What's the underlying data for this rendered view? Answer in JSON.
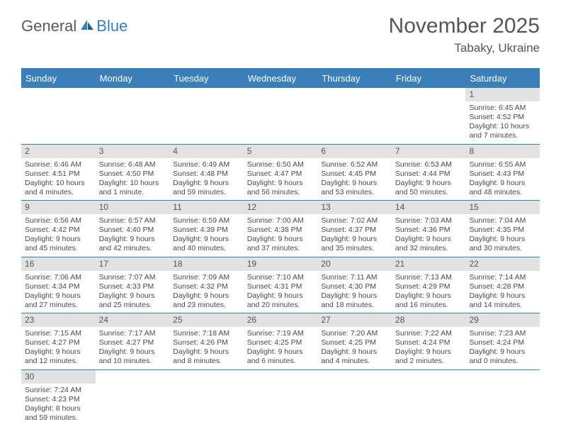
{
  "logo": {
    "text_general": "General",
    "text_blue": "Blue"
  },
  "title": "November 2025",
  "location": "Tabaky, Ukraine",
  "colors": {
    "header_blue": "#3b7fb8",
    "daynum_bg": "#e2e2e2",
    "text": "#4a4a4a",
    "title_text": "#555555"
  },
  "day_headers": [
    "Sunday",
    "Monday",
    "Tuesday",
    "Wednesday",
    "Thursday",
    "Friday",
    "Saturday"
  ],
  "weeks": [
    [
      {
        "day": "",
        "sunrise": "",
        "sunset": "",
        "daylight1": "",
        "daylight2": ""
      },
      {
        "day": "",
        "sunrise": "",
        "sunset": "",
        "daylight1": "",
        "daylight2": ""
      },
      {
        "day": "",
        "sunrise": "",
        "sunset": "",
        "daylight1": "",
        "daylight2": ""
      },
      {
        "day": "",
        "sunrise": "",
        "sunset": "",
        "daylight1": "",
        "daylight2": ""
      },
      {
        "day": "",
        "sunrise": "",
        "sunset": "",
        "daylight1": "",
        "daylight2": ""
      },
      {
        "day": "",
        "sunrise": "",
        "sunset": "",
        "daylight1": "",
        "daylight2": ""
      },
      {
        "day": "1",
        "sunrise": "Sunrise: 6:45 AM",
        "sunset": "Sunset: 4:52 PM",
        "daylight1": "Daylight: 10 hours",
        "daylight2": "and 7 minutes."
      }
    ],
    [
      {
        "day": "2",
        "sunrise": "Sunrise: 6:46 AM",
        "sunset": "Sunset: 4:51 PM",
        "daylight1": "Daylight: 10 hours",
        "daylight2": "and 4 minutes."
      },
      {
        "day": "3",
        "sunrise": "Sunrise: 6:48 AM",
        "sunset": "Sunset: 4:50 PM",
        "daylight1": "Daylight: 10 hours",
        "daylight2": "and 1 minute."
      },
      {
        "day": "4",
        "sunrise": "Sunrise: 6:49 AM",
        "sunset": "Sunset: 4:48 PM",
        "daylight1": "Daylight: 9 hours",
        "daylight2": "and 59 minutes."
      },
      {
        "day": "5",
        "sunrise": "Sunrise: 6:50 AM",
        "sunset": "Sunset: 4:47 PM",
        "daylight1": "Daylight: 9 hours",
        "daylight2": "and 56 minutes."
      },
      {
        "day": "6",
        "sunrise": "Sunrise: 6:52 AM",
        "sunset": "Sunset: 4:45 PM",
        "daylight1": "Daylight: 9 hours",
        "daylight2": "and 53 minutes."
      },
      {
        "day": "7",
        "sunrise": "Sunrise: 6:53 AM",
        "sunset": "Sunset: 4:44 PM",
        "daylight1": "Daylight: 9 hours",
        "daylight2": "and 50 minutes."
      },
      {
        "day": "8",
        "sunrise": "Sunrise: 6:55 AM",
        "sunset": "Sunset: 4:43 PM",
        "daylight1": "Daylight: 9 hours",
        "daylight2": "and 48 minutes."
      }
    ],
    [
      {
        "day": "9",
        "sunrise": "Sunrise: 6:56 AM",
        "sunset": "Sunset: 4:42 PM",
        "daylight1": "Daylight: 9 hours",
        "daylight2": "and 45 minutes."
      },
      {
        "day": "10",
        "sunrise": "Sunrise: 6:57 AM",
        "sunset": "Sunset: 4:40 PM",
        "daylight1": "Daylight: 9 hours",
        "daylight2": "and 42 minutes."
      },
      {
        "day": "11",
        "sunrise": "Sunrise: 6:59 AM",
        "sunset": "Sunset: 4:39 PM",
        "daylight1": "Daylight: 9 hours",
        "daylight2": "and 40 minutes."
      },
      {
        "day": "12",
        "sunrise": "Sunrise: 7:00 AM",
        "sunset": "Sunset: 4:38 PM",
        "daylight1": "Daylight: 9 hours",
        "daylight2": "and 37 minutes."
      },
      {
        "day": "13",
        "sunrise": "Sunrise: 7:02 AM",
        "sunset": "Sunset: 4:37 PM",
        "daylight1": "Daylight: 9 hours",
        "daylight2": "and 35 minutes."
      },
      {
        "day": "14",
        "sunrise": "Sunrise: 7:03 AM",
        "sunset": "Sunset: 4:36 PM",
        "daylight1": "Daylight: 9 hours",
        "daylight2": "and 32 minutes."
      },
      {
        "day": "15",
        "sunrise": "Sunrise: 7:04 AM",
        "sunset": "Sunset: 4:35 PM",
        "daylight1": "Daylight: 9 hours",
        "daylight2": "and 30 minutes."
      }
    ],
    [
      {
        "day": "16",
        "sunrise": "Sunrise: 7:06 AM",
        "sunset": "Sunset: 4:34 PM",
        "daylight1": "Daylight: 9 hours",
        "daylight2": "and 27 minutes."
      },
      {
        "day": "17",
        "sunrise": "Sunrise: 7:07 AM",
        "sunset": "Sunset: 4:33 PM",
        "daylight1": "Daylight: 9 hours",
        "daylight2": "and 25 minutes."
      },
      {
        "day": "18",
        "sunrise": "Sunrise: 7:09 AM",
        "sunset": "Sunset: 4:32 PM",
        "daylight1": "Daylight: 9 hours",
        "daylight2": "and 23 minutes."
      },
      {
        "day": "19",
        "sunrise": "Sunrise: 7:10 AM",
        "sunset": "Sunset: 4:31 PM",
        "daylight1": "Daylight: 9 hours",
        "daylight2": "and 20 minutes."
      },
      {
        "day": "20",
        "sunrise": "Sunrise: 7:11 AM",
        "sunset": "Sunset: 4:30 PM",
        "daylight1": "Daylight: 9 hours",
        "daylight2": "and 18 minutes."
      },
      {
        "day": "21",
        "sunrise": "Sunrise: 7:13 AM",
        "sunset": "Sunset: 4:29 PM",
        "daylight1": "Daylight: 9 hours",
        "daylight2": "and 16 minutes."
      },
      {
        "day": "22",
        "sunrise": "Sunrise: 7:14 AM",
        "sunset": "Sunset: 4:28 PM",
        "daylight1": "Daylight: 9 hours",
        "daylight2": "and 14 minutes."
      }
    ],
    [
      {
        "day": "23",
        "sunrise": "Sunrise: 7:15 AM",
        "sunset": "Sunset: 4:27 PM",
        "daylight1": "Daylight: 9 hours",
        "daylight2": "and 12 minutes."
      },
      {
        "day": "24",
        "sunrise": "Sunrise: 7:17 AM",
        "sunset": "Sunset: 4:27 PM",
        "daylight1": "Daylight: 9 hours",
        "daylight2": "and 10 minutes."
      },
      {
        "day": "25",
        "sunrise": "Sunrise: 7:18 AM",
        "sunset": "Sunset: 4:26 PM",
        "daylight1": "Daylight: 9 hours",
        "daylight2": "and 8 minutes."
      },
      {
        "day": "26",
        "sunrise": "Sunrise: 7:19 AM",
        "sunset": "Sunset: 4:25 PM",
        "daylight1": "Daylight: 9 hours",
        "daylight2": "and 6 minutes."
      },
      {
        "day": "27",
        "sunrise": "Sunrise: 7:20 AM",
        "sunset": "Sunset: 4:25 PM",
        "daylight1": "Daylight: 9 hours",
        "daylight2": "and 4 minutes."
      },
      {
        "day": "28",
        "sunrise": "Sunrise: 7:22 AM",
        "sunset": "Sunset: 4:24 PM",
        "daylight1": "Daylight: 9 hours",
        "daylight2": "and 2 minutes."
      },
      {
        "day": "29",
        "sunrise": "Sunrise: 7:23 AM",
        "sunset": "Sunset: 4:24 PM",
        "daylight1": "Daylight: 9 hours",
        "daylight2": "and 0 minutes."
      }
    ],
    [
      {
        "day": "30",
        "sunrise": "Sunrise: 7:24 AM",
        "sunset": "Sunset: 4:23 PM",
        "daylight1": "Daylight: 8 hours",
        "daylight2": "and 59 minutes."
      },
      {
        "day": "",
        "sunrise": "",
        "sunset": "",
        "daylight1": "",
        "daylight2": ""
      },
      {
        "day": "",
        "sunrise": "",
        "sunset": "",
        "daylight1": "",
        "daylight2": ""
      },
      {
        "day": "",
        "sunrise": "",
        "sunset": "",
        "daylight1": "",
        "daylight2": ""
      },
      {
        "day": "",
        "sunrise": "",
        "sunset": "",
        "daylight1": "",
        "daylight2": ""
      },
      {
        "day": "",
        "sunrise": "",
        "sunset": "",
        "daylight1": "",
        "daylight2": ""
      },
      {
        "day": "",
        "sunrise": "",
        "sunset": "",
        "daylight1": "",
        "daylight2": ""
      }
    ]
  ]
}
